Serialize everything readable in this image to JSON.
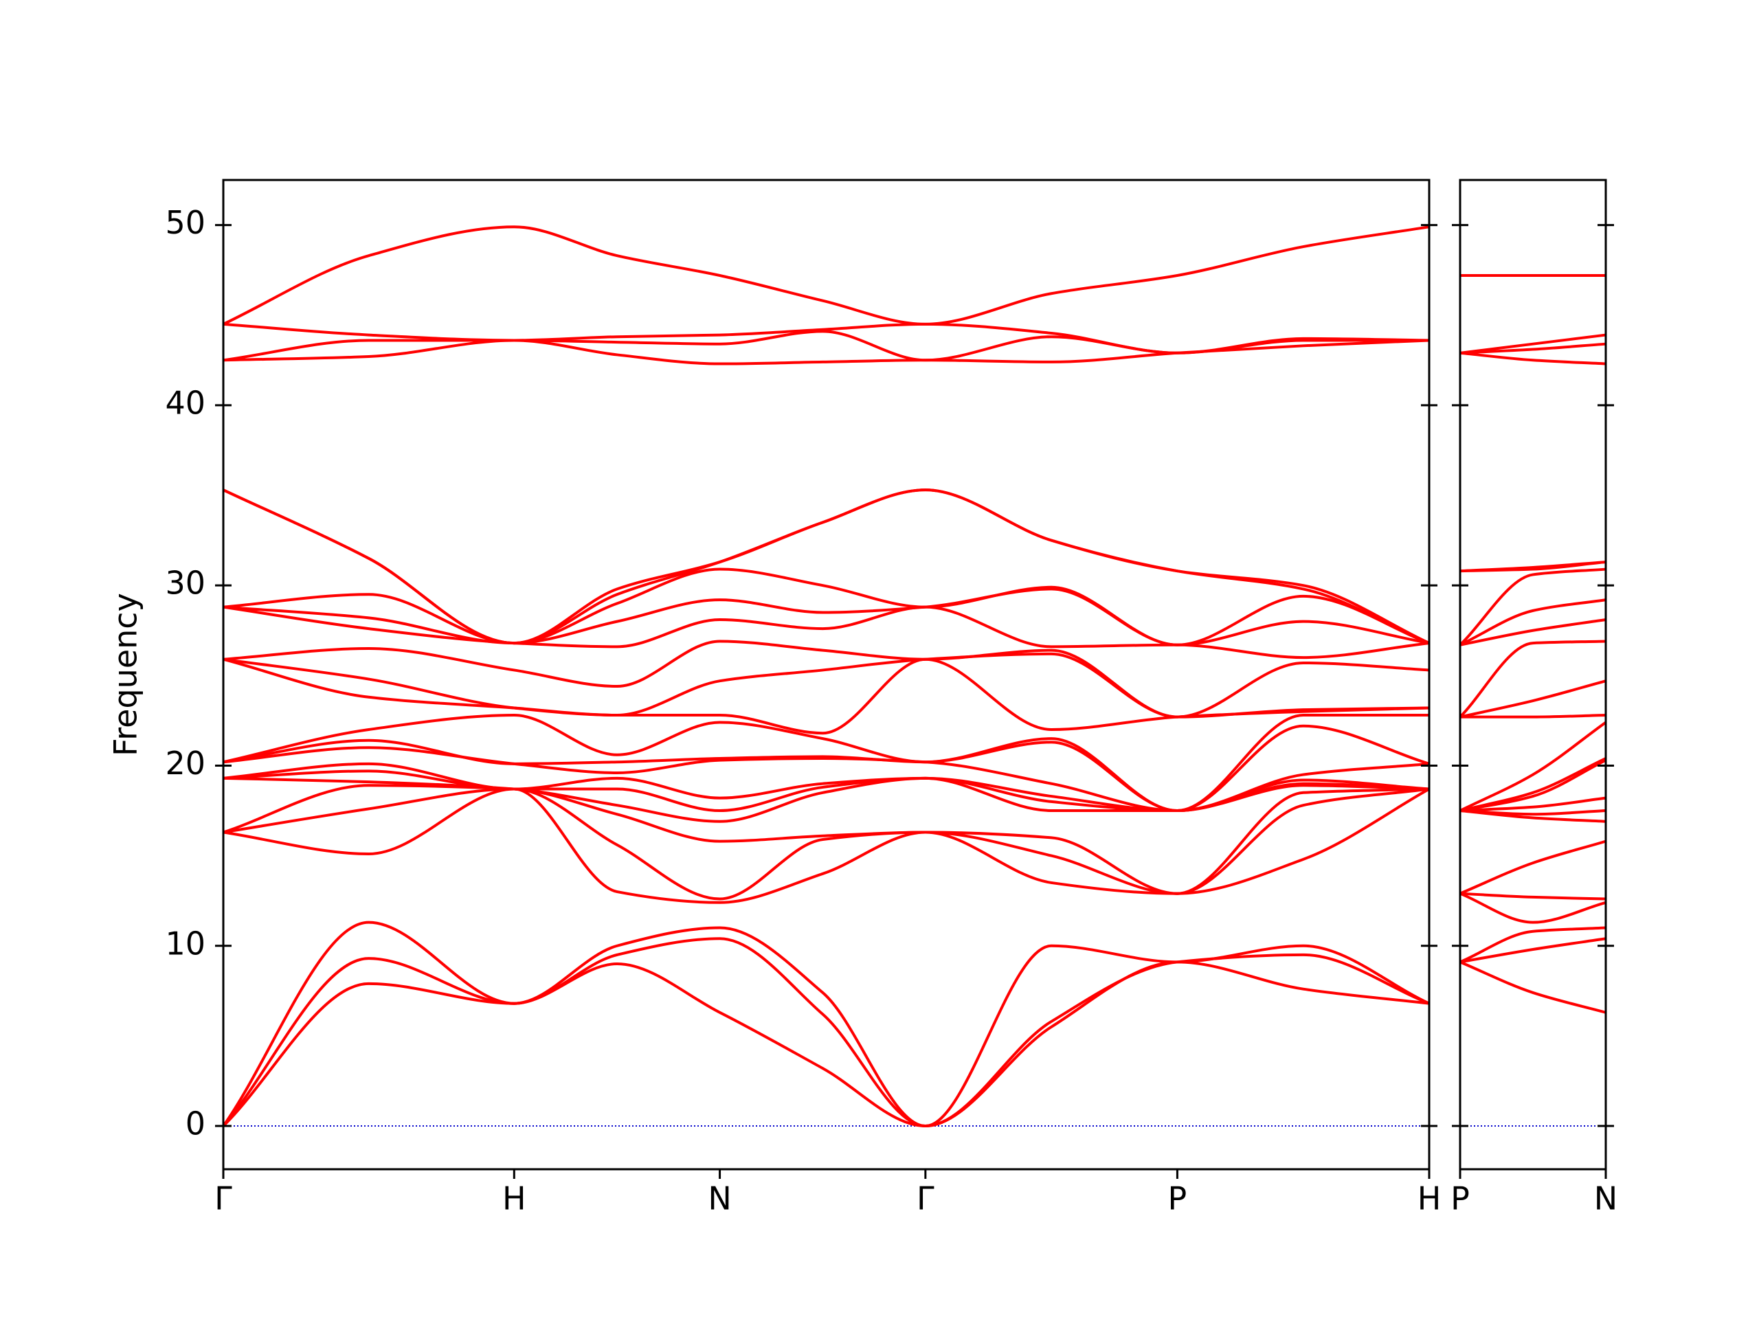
{
  "chart_data": {
    "type": "line",
    "ylabel": "Frequency",
    "ylim": [
      -2.4,
      52.5
    ],
    "yticks": [
      0,
      10,
      20,
      30,
      40,
      50
    ],
    "color": "#ff0000",
    "zero_line": {
      "value": 0,
      "color": "#0000cc"
    },
    "panels": [
      {
        "x": [
          0,
          0.5,
          1,
          1.354,
          1.707,
          2.061,
          2.414,
          2.847,
          3.28,
          3.713,
          4.146
        ],
        "xlim": [
          0,
          4.146
        ],
        "xticks": [
          {
            "value": 0,
            "label": "Γ"
          },
          {
            "value": 1,
            "label": "H"
          },
          {
            "value": 1.707,
            "label": "N"
          },
          {
            "value": 2.414,
            "label": "Γ"
          },
          {
            "value": 3.28,
            "label": "P"
          },
          {
            "value": 4.146,
            "label": "H"
          }
        ],
        "series": [
          {
            "values": [
              0,
              7.9,
              6.8,
              9.0,
              6.3,
              3.2,
              0,
              5.5,
              9.1,
              7.6,
              6.8
            ]
          },
          {
            "values": [
              0,
              9.3,
              6.8,
              9.5,
              10.4,
              6.2,
              0,
              5.8,
              9.1,
              9.5,
              6.8
            ]
          },
          {
            "values": [
              0,
              11.3,
              6.8,
              10.0,
              11.0,
              7.4,
              0,
              10.0,
              9.1,
              10.0,
              6.8
            ]
          },
          {
            "values": [
              16.3,
              15.1,
              18.7,
              13.0,
              12.4,
              14.0,
              16.3,
              13.5,
              12.9,
              14.8,
              18.7
            ]
          },
          {
            "values": [
              16.3,
              17.6,
              18.7,
              15.6,
              12.6,
              15.9,
              16.3,
              15.0,
              12.9,
              17.8,
              18.7
            ]
          },
          {
            "values": [
              16.3,
              18.9,
              18.7,
              17.3,
              15.8,
              16.1,
              16.3,
              16.0,
              12.9,
              18.5,
              18.7
            ]
          },
          {
            "values": [
              19.3,
              19.1,
              18.7,
              17.8,
              16.9,
              18.5,
              19.3,
              17.5,
              17.5,
              18.9,
              18.7
            ]
          },
          {
            "values": [
              19.3,
              19.7,
              18.7,
              18.7,
              17.5,
              18.8,
              19.3,
              18.0,
              17.5,
              19.0,
              18.7
            ]
          },
          {
            "values": [
              19.3,
              20.1,
              18.7,
              19.3,
              18.2,
              19.0,
              19.3,
              18.3,
              17.5,
              19.2,
              18.7
            ]
          },
          {
            "values": [
              20.2,
              21.0,
              20.1,
              19.6,
              20.3,
              20.4,
              20.2,
              19.0,
              17.5,
              19.5,
              20.1
            ]
          },
          {
            "values": [
              20.2,
              21.4,
              20.1,
              20.2,
              20.4,
              20.5,
              20.2,
              21.3,
              17.5,
              22.2,
              20.1
            ]
          },
          {
            "values": [
              20.2,
              22.0,
              22.8,
              20.6,
              22.4,
              21.5,
              20.2,
              21.5,
              17.5,
              22.8,
              22.8
            ]
          },
          {
            "values": [
              25.9,
              23.8,
              23.2,
              22.8,
              22.8,
              21.8,
              25.9,
              22.0,
              22.7,
              23.0,
              23.2
            ]
          },
          {
            "values": [
              25.9,
              24.8,
              23.2,
              22.8,
              24.7,
              25.3,
              25.9,
              26.2,
              22.7,
              23.1,
              23.2
            ]
          },
          {
            "values": [
              25.9,
              26.5,
              25.3,
              24.4,
              26.9,
              26.4,
              25.9,
              26.4,
              22.7,
              25.7,
              25.3
            ]
          },
          {
            "values": [
              28.8,
              27.6,
              26.8,
              26.6,
              28.1,
              27.6,
              28.8,
              26.6,
              26.7,
              26.0,
              26.8
            ]
          },
          {
            "values": [
              28.8,
              28.2,
              26.8,
              28.0,
              29.2,
              28.5,
              28.8,
              29.8,
              26.7,
              28.0,
              26.8
            ]
          },
          {
            "values": [
              28.8,
              29.5,
              26.8,
              29.0,
              30.9,
              30.0,
              28.8,
              29.9,
              26.7,
              29.4,
              26.8
            ]
          },
          {
            "values": [
              35.3,
              31.5,
              26.8,
              29.5,
              31.3,
              33.5,
              35.3,
              32.5,
              30.8,
              29.8,
              26.8
            ]
          },
          {
            "values": [
              35.3,
              31.5,
              26.8,
              29.8,
              31.3,
              33.5,
              35.3,
              32.5,
              30.8,
              30.0,
              26.8
            ]
          },
          {
            "values": [
              42.5,
              42.7,
              43.6,
              42.8,
              42.3,
              42.4,
              42.5,
              42.4,
              42.9,
              43.3,
              43.6
            ]
          },
          {
            "values": [
              42.5,
              43.6,
              43.6,
              43.5,
              43.4,
              44.1,
              42.5,
              43.8,
              42.9,
              43.6,
              43.6
            ]
          },
          {
            "values": [
              44.5,
              43.9,
              43.6,
              43.8,
              43.9,
              44.2,
              44.5,
              44.0,
              42.9,
              43.7,
              43.6
            ]
          },
          {
            "values": [
              44.5,
              48.3,
              49.9,
              48.3,
              47.2,
              45.8,
              44.5,
              46.2,
              47.2,
              48.8,
              49.9
            ]
          }
        ]
      },
      {
        "x": [
          0,
          0.25,
          0.5
        ],
        "xlim": [
          0,
          0.5
        ],
        "xticks": [
          {
            "value": 0,
            "label": "P"
          },
          {
            "value": 0.5,
            "label": "N"
          }
        ],
        "series": [
          {
            "values": [
              9.1,
              7.4,
              6.3
            ]
          },
          {
            "values": [
              9.1,
              9.8,
              10.4
            ]
          },
          {
            "values": [
              9.1,
              10.8,
              11.0
            ]
          },
          {
            "values": [
              12.9,
              11.3,
              12.4
            ]
          },
          {
            "values": [
              12.9,
              12.7,
              12.6
            ]
          },
          {
            "values": [
              12.9,
              14.6,
              15.8
            ]
          },
          {
            "values": [
              17.5,
              17.1,
              16.9
            ]
          },
          {
            "values": [
              17.5,
              17.3,
              17.5
            ]
          },
          {
            "values": [
              17.5,
              17.7,
              18.2
            ]
          },
          {
            "values": [
              17.5,
              18.3,
              20.3
            ]
          },
          {
            "values": [
              17.5,
              18.5,
              20.4
            ]
          },
          {
            "values": [
              17.5,
              19.5,
              22.4
            ]
          },
          {
            "values": [
              22.7,
              22.7,
              22.8
            ]
          },
          {
            "values": [
              22.7,
              23.6,
              24.7
            ]
          },
          {
            "values": [
              22.7,
              26.8,
              26.9
            ]
          },
          {
            "values": [
              26.7,
              27.5,
              28.1
            ]
          },
          {
            "values": [
              26.7,
              28.6,
              29.2
            ]
          },
          {
            "values": [
              26.7,
              30.6,
              30.9
            ]
          },
          {
            "values": [
              30.8,
              30.9,
              31.3
            ]
          },
          {
            "values": [
              30.8,
              31.0,
              31.3
            ]
          },
          {
            "values": [
              42.9,
              42.5,
              42.3
            ]
          },
          {
            "values": [
              42.9,
              43.1,
              43.4
            ]
          },
          {
            "values": [
              42.9,
              43.4,
              43.9
            ]
          },
          {
            "values": [
              47.2,
              47.2,
              47.2
            ]
          }
        ]
      }
    ]
  }
}
